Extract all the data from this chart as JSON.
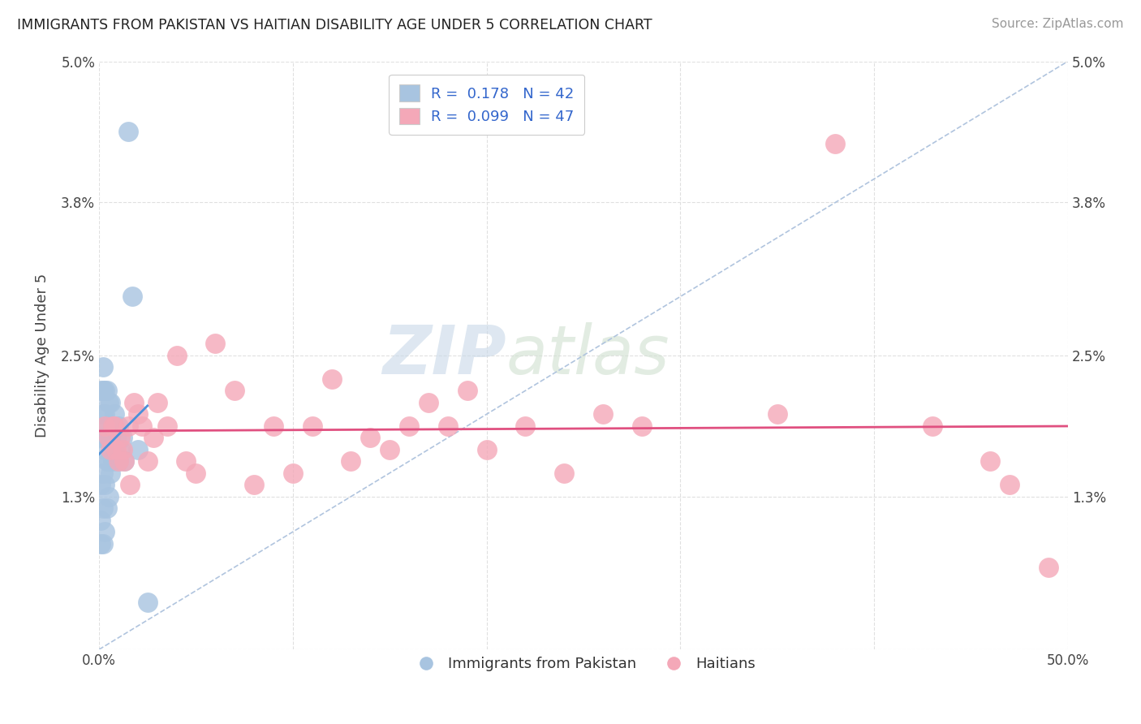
{
  "title": "IMMIGRANTS FROM PAKISTAN VS HAITIAN DISABILITY AGE UNDER 5 CORRELATION CHART",
  "source": "Source: ZipAtlas.com",
  "ylabel": "Disability Age Under 5",
  "xlim": [
    0.0,
    0.5
  ],
  "ylim": [
    0.0,
    0.05
  ],
  "xticks": [
    0.0,
    0.1,
    0.2,
    0.3,
    0.4,
    0.5
  ],
  "xticklabels": [
    "0.0%",
    "",
    "",
    "",
    "",
    "50.0%"
  ],
  "yticks": [
    0.0,
    0.013,
    0.025,
    0.038,
    0.05
  ],
  "yticklabels": [
    "",
    "1.3%",
    "2.5%",
    "3.8%",
    "5.0%"
  ],
  "pakistan_R": 0.178,
  "pakistan_N": 42,
  "haitian_R": 0.099,
  "haitian_N": 47,
  "pakistan_color": "#a8c4e0",
  "haitian_color": "#f4a8b8",
  "pakistan_line_color": "#4a90d9",
  "haitian_line_color": "#e05080",
  "legend_color": "#3366cc",
  "watermark_zip": "ZIP",
  "watermark_atlas": "atlas",
  "pakistan_x": [
    0.001,
    0.001,
    0.001,
    0.001,
    0.001,
    0.002,
    0.002,
    0.002,
    0.002,
    0.002,
    0.002,
    0.002,
    0.003,
    0.003,
    0.003,
    0.003,
    0.003,
    0.004,
    0.004,
    0.004,
    0.004,
    0.005,
    0.005,
    0.005,
    0.005,
    0.006,
    0.006,
    0.006,
    0.007,
    0.007,
    0.008,
    0.008,
    0.009,
    0.01,
    0.01,
    0.011,
    0.012,
    0.013,
    0.015,
    0.017,
    0.02,
    0.025
  ],
  "pakistan_y": [
    0.009,
    0.011,
    0.014,
    0.018,
    0.022,
    0.009,
    0.012,
    0.015,
    0.018,
    0.02,
    0.022,
    0.024,
    0.01,
    0.014,
    0.017,
    0.02,
    0.022,
    0.012,
    0.016,
    0.019,
    0.022,
    0.013,
    0.016,
    0.019,
    0.021,
    0.015,
    0.018,
    0.021,
    0.016,
    0.019,
    0.017,
    0.02,
    0.018,
    0.016,
    0.019,
    0.017,
    0.018,
    0.016,
    0.044,
    0.03,
    0.017,
    0.004
  ],
  "haitian_x": [
    0.003,
    0.005,
    0.006,
    0.007,
    0.008,
    0.009,
    0.01,
    0.011,
    0.012,
    0.013,
    0.015,
    0.016,
    0.018,
    0.02,
    0.022,
    0.025,
    0.028,
    0.03,
    0.035,
    0.04,
    0.045,
    0.05,
    0.06,
    0.07,
    0.08,
    0.09,
    0.1,
    0.11,
    0.12,
    0.13,
    0.14,
    0.15,
    0.16,
    0.17,
    0.18,
    0.19,
    0.2,
    0.22,
    0.24,
    0.26,
    0.28,
    0.35,
    0.38,
    0.43,
    0.46,
    0.47,
    0.49
  ],
  "haitian_y": [
    0.019,
    0.018,
    0.017,
    0.019,
    0.019,
    0.017,
    0.016,
    0.018,
    0.017,
    0.016,
    0.019,
    0.014,
    0.021,
    0.02,
    0.019,
    0.016,
    0.018,
    0.021,
    0.019,
    0.025,
    0.016,
    0.015,
    0.026,
    0.022,
    0.014,
    0.019,
    0.015,
    0.019,
    0.023,
    0.016,
    0.018,
    0.017,
    0.019,
    0.021,
    0.019,
    0.022,
    0.017,
    0.019,
    0.015,
    0.02,
    0.019,
    0.02,
    0.043,
    0.019,
    0.016,
    0.014,
    0.007
  ],
  "trend_dashed_color": "#b0c4de",
  "background_color": "#ffffff",
  "grid_color": "#e0e0e0"
}
